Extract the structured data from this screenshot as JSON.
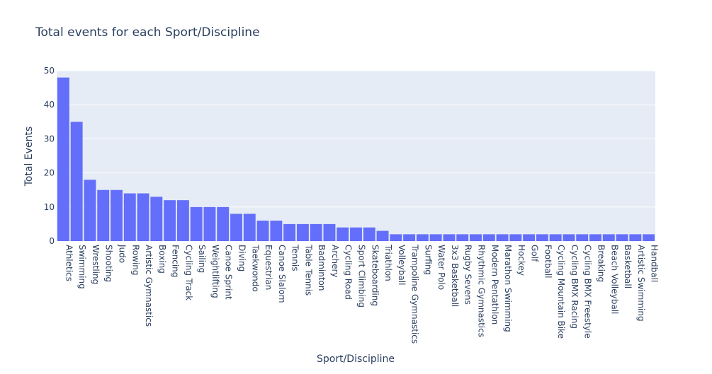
{
  "chart_data": {
    "type": "bar",
    "title": "Total events for each Sport/Discipline",
    "xlabel": "Sport/Discipline",
    "ylabel": "Total Events",
    "ylim": [
      0,
      50
    ],
    "yticks": [
      0,
      10,
      20,
      30,
      40,
      50
    ],
    "grid": true,
    "bar_color": "#636efa",
    "plot_background": "#e5ecf6",
    "categories": [
      "Athletics",
      "Swimming",
      "Wrestling",
      "Shooting",
      "Judo",
      "Rowing",
      "Artistic Gymnastics",
      "Boxing",
      "Fencing",
      "Cycling Track",
      "Sailing",
      "Weightlifting",
      "Canoe Sprint",
      "Diving",
      "Taekwondo",
      "Equestrian",
      "Canoe Slalom",
      "Tennis",
      "Table Tennis",
      "Badminton",
      "Archery",
      "Cycling Road",
      "Sport Climbing",
      "Skateboarding",
      "Triathlon",
      "Volleyball",
      "Trampoline Gymnastics",
      "Surfing",
      "Water Polo",
      "3x3 Basketball",
      "Rugby Sevens",
      "Rhythmic Gymnastics",
      "Modern Pentathlon",
      "Marathon Swimming",
      "Hockey",
      "Golf",
      "Football",
      "Cycling Mountain Bike",
      "Cycling BMX Racing",
      "Cycling BMX Freestyle",
      "Breaking",
      "Beach Volleyball",
      "Basketball",
      "Artistic Swimming",
      "Handball"
    ],
    "values": [
      48,
      35,
      18,
      15,
      15,
      14,
      14,
      13,
      12,
      12,
      10,
      10,
      10,
      8,
      8,
      6,
      6,
      5,
      5,
      5,
      5,
      4,
      4,
      4,
      3,
      2,
      2,
      2,
      2,
      2,
      2,
      2,
      2,
      2,
      2,
      2,
      2,
      2,
      2,
      2,
      2,
      2,
      2,
      2,
      2
    ]
  }
}
